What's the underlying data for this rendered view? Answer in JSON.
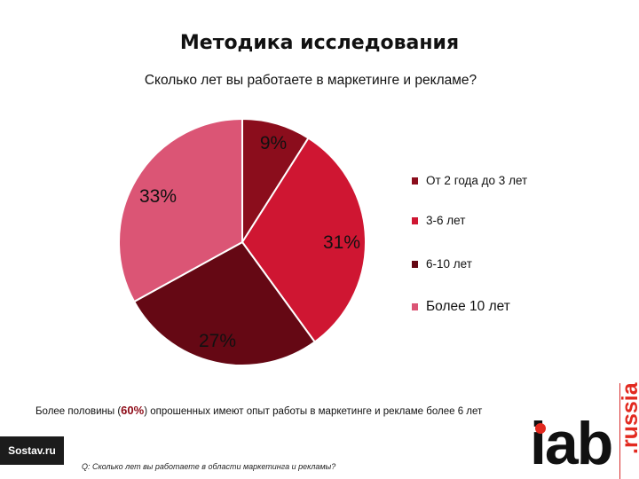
{
  "header": {
    "title": "Методика исследования",
    "question": "Сколько лет вы работаете в маркетинге и рекламе?"
  },
  "chart_data": {
    "type": "pie",
    "title": "Сколько лет вы работаете в маркетинге и рекламе?",
    "slices": [
      {
        "label": "От 2 года до 3 лет",
        "value": 9,
        "display": "9%",
        "color": "#8b0d1c"
      },
      {
        "label": "3-6 лет",
        "value": 31,
        "display": "31%",
        "color": "#cf1632"
      },
      {
        "label": "6-10 лет",
        "value": 27,
        "display": "27%",
        "color": "#650814"
      },
      {
        "label": "Более 10 лет",
        "value": 33,
        "display": "33%",
        "color": "#db5575"
      }
    ],
    "legend": "right",
    "start_angle": "12 o'clock",
    "direction": "clockwise"
  },
  "conclusion": {
    "before": "Более половины (",
    "highlight": "60%",
    "after": ") опрошенных имеют опыт работы в маркетинге и рекламе более 6 лет"
  },
  "footnote": "Q: Сколько лет вы работаете в области маркетинга и рекламы?",
  "logos": {
    "sostav": "Sostav.ru",
    "iab": "iab",
    "russia": ".russia"
  }
}
